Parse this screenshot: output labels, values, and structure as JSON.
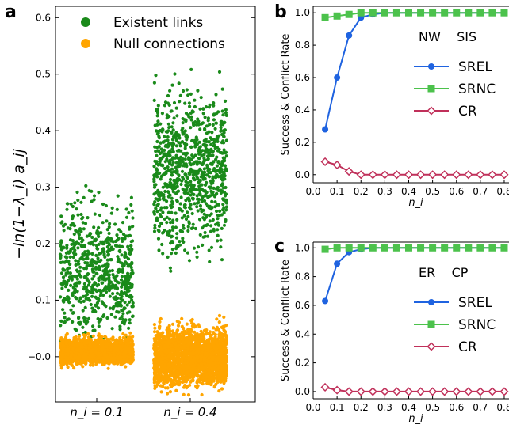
{
  "chart_data": [
    {
      "panel": "a",
      "type": "scatter",
      "ylabel": "−ln(1−λ_i) a_ij",
      "ylim": [
        -0.08,
        0.62
      ],
      "yticks": [
        "−0.0",
        "0.1",
        "0.2",
        "0.3",
        "0.4",
        "0.5",
        "0.6"
      ],
      "ytick_values": [
        0,
        0.1,
        0.2,
        0.3,
        0.4,
        0.5,
        0.6
      ],
      "categories": [
        "n_i = 0.1",
        "n_i = 0.4"
      ],
      "series": [
        {
          "name": "Existent links",
          "color": "#1a8a1a",
          "ranges": [
            {
              "category": 0,
              "min": -0.02,
              "max": 0.42,
              "center": 0.15
            },
            {
              "category": 1,
              "min": -0.01,
              "max": 0.51,
              "center": 0.33
            }
          ]
        },
        {
          "name": "Null connections",
          "color": "#ffa500",
          "ranges": [
            {
              "category": 0,
              "min": -0.04,
              "max": 0.07,
              "center": 0.01
            },
            {
              "category": 1,
              "min": -0.07,
              "max": 0.17,
              "center": 0.0
            }
          ]
        }
      ],
      "legend_position": "top-right"
    },
    {
      "panel": "b",
      "type": "line",
      "annotation": "NW    SIS",
      "xlabel": "n_i",
      "ylabel": "Success & Conflict Rate",
      "xlim": [
        0,
        0.82
      ],
      "ylim": [
        -0.05,
        1.04
      ],
      "xticks": [
        "0.0",
        "0.1",
        "0.2",
        "0.3",
        "0.4",
        "0.5",
        "0.6",
        "0.7",
        "0.8"
      ],
      "yticks": [
        "0.0",
        "0.2",
        "0.4",
        "0.6",
        "0.8",
        "1.0"
      ],
      "x": [
        0.05,
        0.1,
        0.15,
        0.2,
        0.25,
        0.3,
        0.35,
        0.4,
        0.45,
        0.5,
        0.55,
        0.6,
        0.65,
        0.7,
        0.75,
        0.8
      ],
      "series": [
        {
          "name": "SREL",
          "color": "#1f63e0",
          "marker": "circle",
          "values": [
            0.28,
            0.6,
            0.86,
            0.97,
            0.99,
            1,
            1,
            1,
            1,
            1,
            1,
            1,
            1,
            1,
            1,
            1
          ]
        },
        {
          "name": "SRNC",
          "color": "#4cc24c",
          "marker": "square",
          "values": [
            0.97,
            0.98,
            0.99,
            1,
            1,
            1,
            1,
            1,
            1,
            1,
            1,
            1,
            1,
            1,
            1,
            1
          ]
        },
        {
          "name": "CR",
          "color": "#c0305a",
          "marker": "diamond",
          "values": [
            0.08,
            0.06,
            0.02,
            0,
            0,
            0,
            0,
            0,
            0,
            0,
            0,
            0,
            0,
            0,
            0,
            0
          ]
        }
      ],
      "legend_position": "center-right"
    },
    {
      "panel": "c",
      "type": "line",
      "annotation": "ER    CP",
      "xlabel": "n_i",
      "ylabel": "Success & Conflict Rate",
      "xlim": [
        0,
        0.82
      ],
      "ylim": [
        -0.05,
        1.04
      ],
      "xticks": [
        "0.0",
        "0.1",
        "0.2",
        "0.3",
        "0.4",
        "0.5",
        "0.6",
        "0.7",
        "0.8"
      ],
      "yticks": [
        "0.0",
        "0.2",
        "0.4",
        "0.6",
        "0.8",
        "1.0"
      ],
      "x": [
        0.05,
        0.1,
        0.15,
        0.2,
        0.25,
        0.3,
        0.35,
        0.4,
        0.45,
        0.5,
        0.55,
        0.6,
        0.65,
        0.7,
        0.75,
        0.8
      ],
      "series": [
        {
          "name": "SREL",
          "color": "#1f63e0",
          "marker": "circle",
          "values": [
            0.63,
            0.89,
            0.97,
            0.99,
            1,
            1,
            1,
            1,
            1,
            1,
            1,
            1,
            1,
            1,
            1,
            1
          ]
        },
        {
          "name": "SRNC",
          "color": "#4cc24c",
          "marker": "square",
          "values": [
            0.99,
            1,
            1,
            1,
            1,
            1,
            1,
            1,
            1,
            1,
            1,
            1,
            1,
            1,
            1,
            1
          ]
        },
        {
          "name": "CR",
          "color": "#c0305a",
          "marker": "diamond",
          "values": [
            0.03,
            0.01,
            0,
            0,
            0,
            0,
            0,
            0,
            0,
            0,
            0,
            0,
            0,
            0,
            0,
            0
          ]
        }
      ],
      "legend_position": "center-right"
    }
  ]
}
